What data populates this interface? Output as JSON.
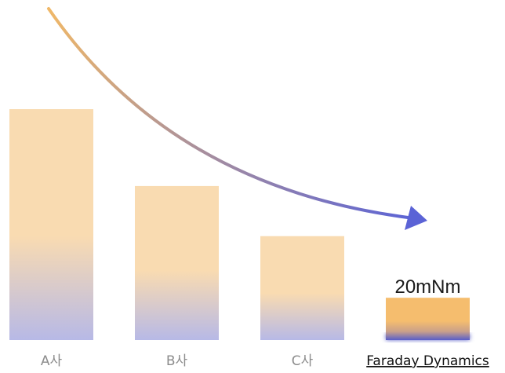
{
  "chart_data": {
    "type": "bar",
    "categories": [
      "A사",
      "B사",
      "C사",
      "Faraday Dynamics"
    ],
    "values": [
      100,
      66.7,
      45,
      18.3
    ],
    "data_labels": [
      "",
      "",
      "",
      "20mNm"
    ],
    "highlight_category": "Faraday Dynamics",
    "title": "",
    "xlabel": "",
    "ylabel": "",
    "ylim": [
      0,
      100
    ],
    "grid": false,
    "legend": "none",
    "trend_arrow": "decreasing"
  },
  "colors": {
    "bar_top": "#f9dbb1",
    "bar_fade": "#b7b9e6",
    "highlight_top": "#f5bd6e",
    "highlight_bottom": "#5a5ec9",
    "arrow_start": "#f0b868",
    "arrow_end": "#5b63d6",
    "label_muted": "#8c8c8c",
    "label_dark": "#111111"
  }
}
